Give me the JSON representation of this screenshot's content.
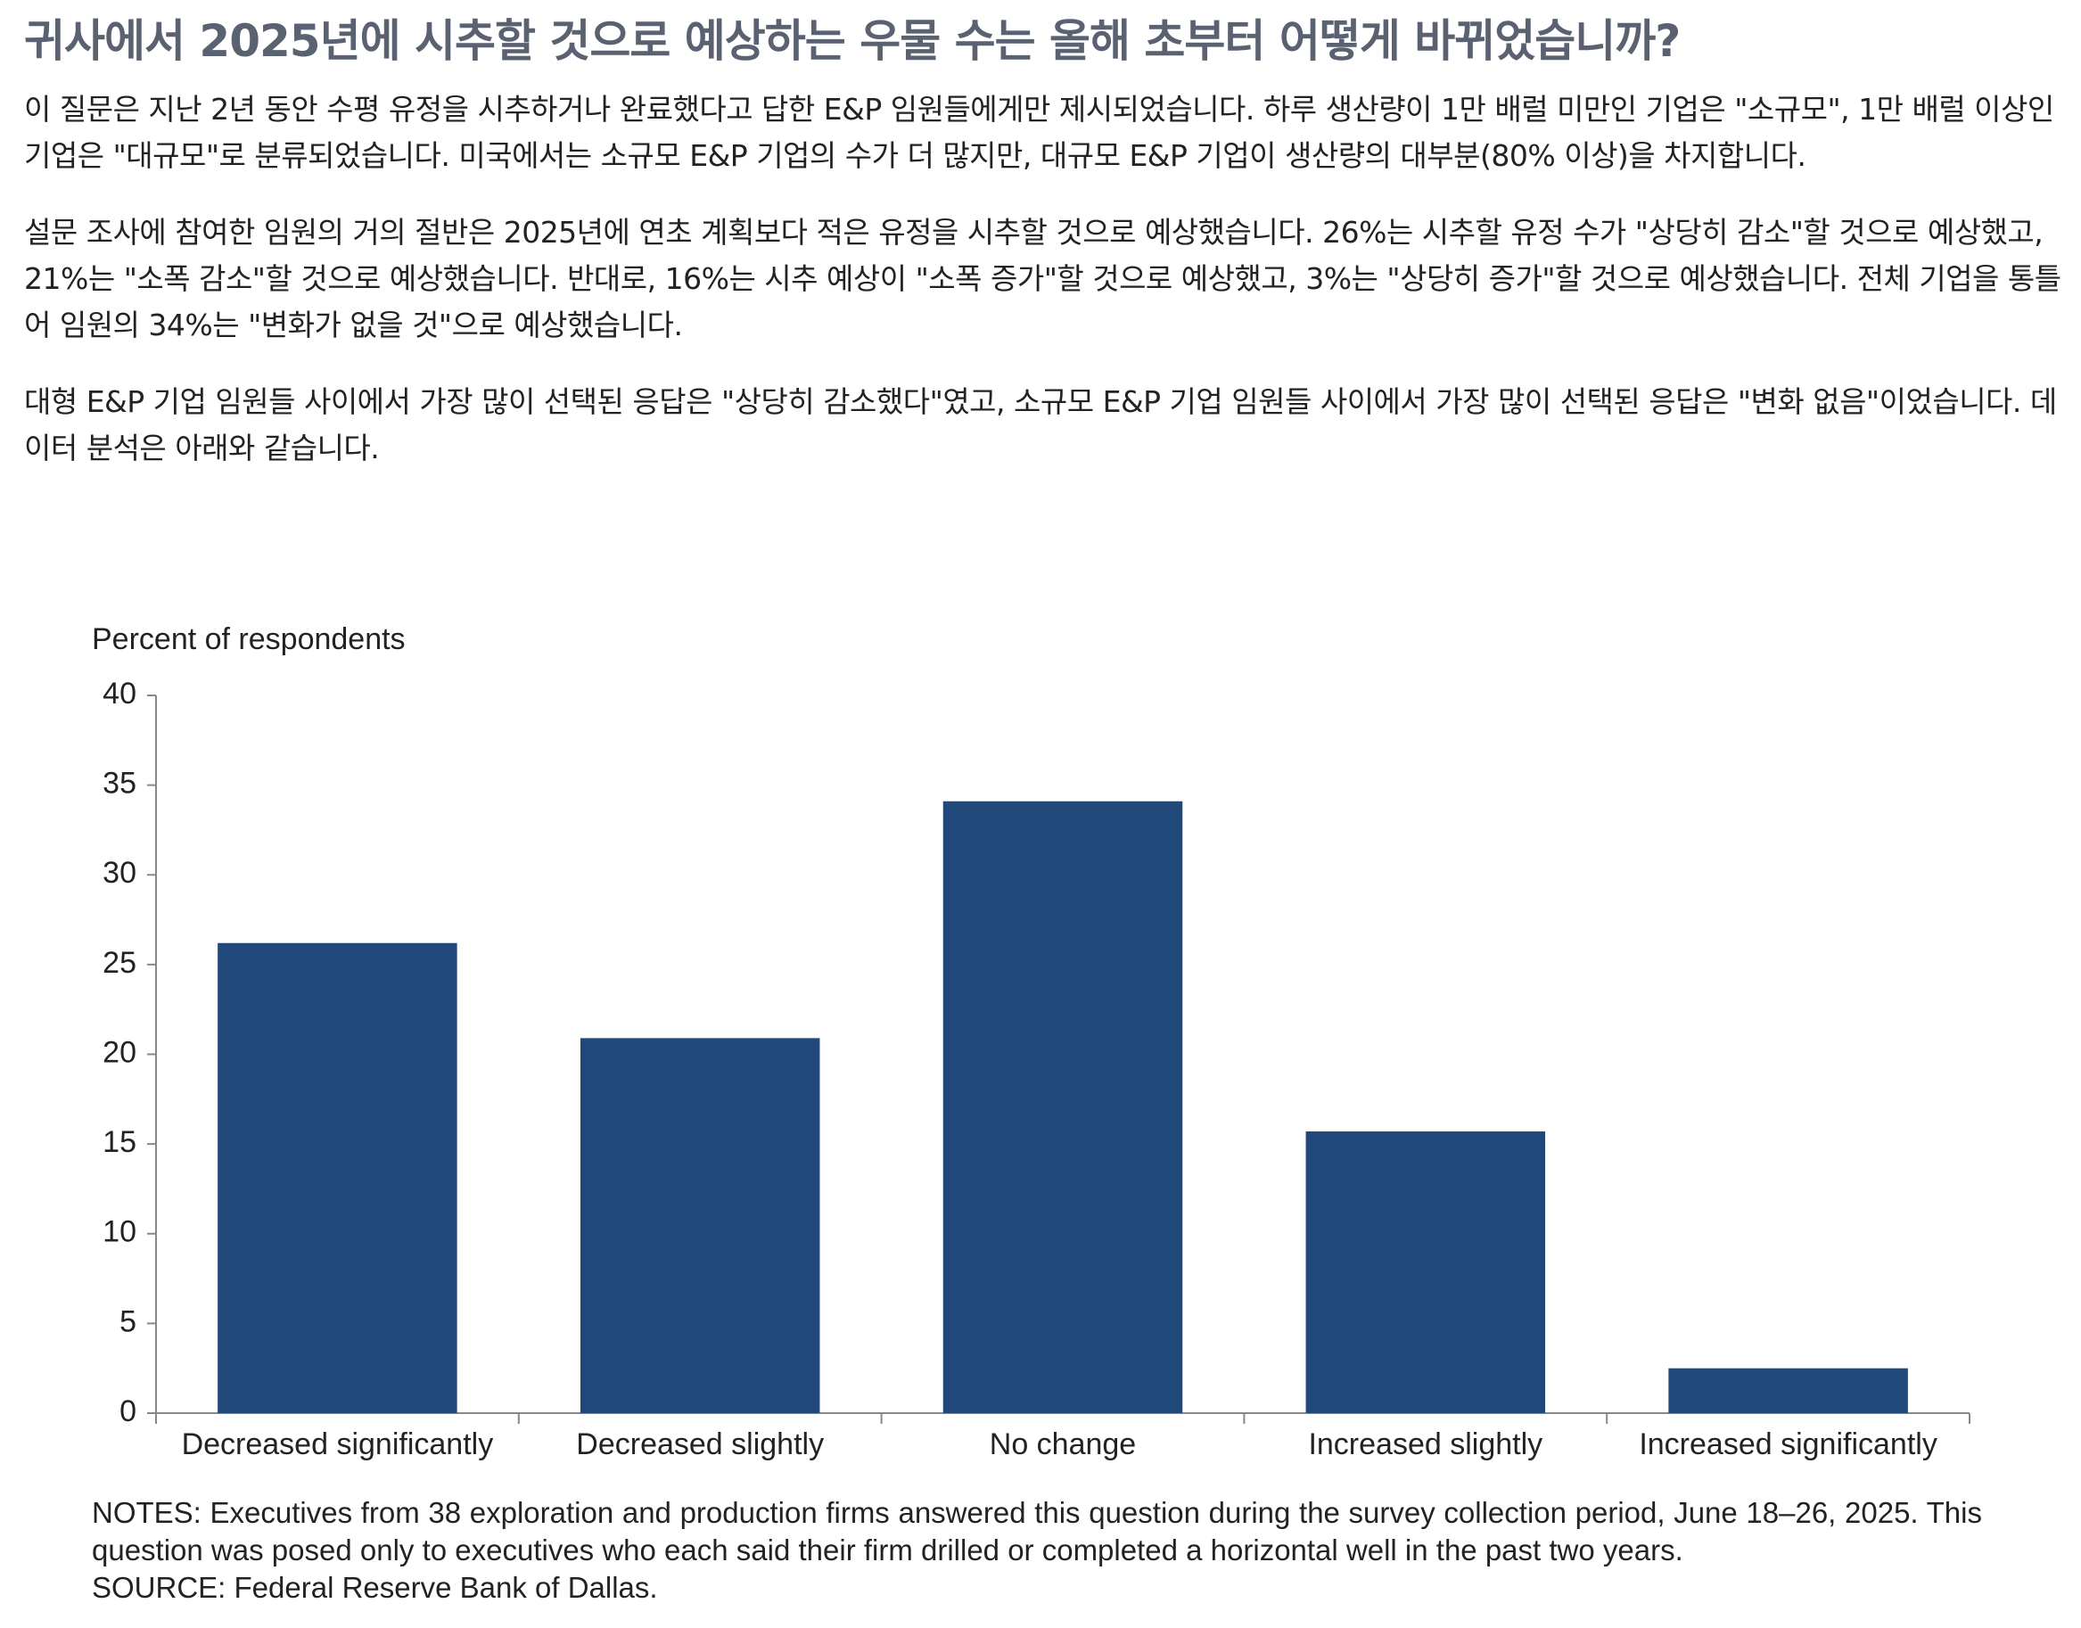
{
  "heading": "귀사에서 2025년에 시추할 것으로 예상하는 우물 수는 올해 초부터 어떻게 바뀌었습니까?",
  "paragraphs": [
    "이 질문은 지난 2년 동안 수평 유정을 시추하거나 완료했다고 답한 E&P 임원들에게만 제시되었습니다. 하루 생산량이 1만 배럴 미만인 기업은 \"소규모\", 1만 배럴 이상인 기업은 \"대규모\"로 분류되었습니다. 미국에서는 소규모 E&P 기업의 수가 더 많지만, 대규모 E&P 기업이 생산량의 대부분(80% 이상)을 차지합니다.",
    "설문 조사에 참여한 임원의 거의 절반은 2025년에 연초 계획보다 적은 유정을 시추할 것으로 예상했습니다. 26%는 시추할 유정 수가 \"상당히 감소\"할 것으로 예상했고, 21%는 \"소폭 감소\"할 것으로 예상했습니다. 반대로, 16%는 시추 예상이 \"소폭 증가\"할 것으로 예상했고, 3%는 \"상당히 증가\"할 것으로 예상했습니다. 전체 기업을 통틀어 임원의 34%는 \"변화가 없을 것\"으로 예상했습니다.",
    "대형 E&P 기업 임원들 사이에서 가장 많이 선택된 응답은 \"상당히 감소했다\"였고, 소규모 E&P 기업 임원들 사이에서 가장 많이 선택된 응답은 \"변화 없음\"이었습니다. 데이터 분석은 아래와 같습니다."
  ],
  "chart_data": {
    "type": "bar",
    "y_label": "Percent of respondents",
    "categories": [
      "Decreased significantly",
      "Decreased slightly",
      "No change",
      "Increased slightly",
      "Increased significantly"
    ],
    "values": [
      26.2,
      20.9,
      34.1,
      15.7,
      2.5
    ],
    "color": "#21487a",
    "ylim": [
      0,
      40
    ],
    "yticks": [
      0,
      5,
      10,
      15,
      20,
      25,
      30,
      35,
      40
    ],
    "grid": false,
    "notes": "NOTES: Executives from 38 exploration and production firms answered this question during the survey collection period, June 18–26, 2025. This question was posed only to executives who each said their firm drilled or completed a horizontal well in the past two years.",
    "source": "SOURCE: Federal Reserve Bank of Dallas."
  }
}
